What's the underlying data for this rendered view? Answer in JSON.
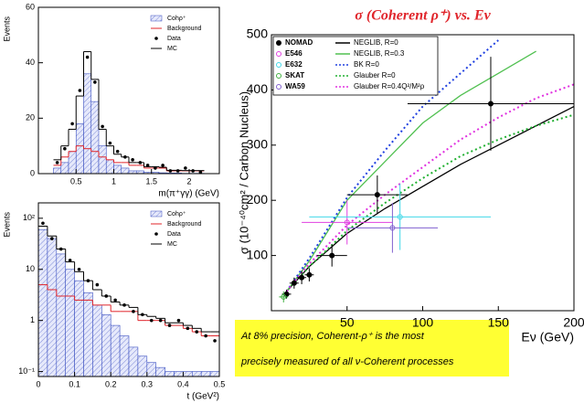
{
  "chart_data": [
    {
      "type": "histogram",
      "xlabel": "m(π⁺γγ) (GeV)",
      "ylabel": "Events",
      "bins": [
        0.2,
        0.3,
        0.4,
        0.5,
        0.6,
        0.7,
        0.8,
        0.9,
        1.0,
        1.1,
        1.2,
        1.3,
        1.4,
        1.5,
        1.6,
        1.7,
        1.8,
        1.9,
        2.0,
        2.1,
        2.2
      ],
      "xlim": [
        0,
        2.4
      ],
      "ylim": [
        0,
        60
      ],
      "xticks": [
        0.5,
        1,
        1.5,
        2
      ],
      "yticks": [
        0,
        20,
        40,
        60
      ],
      "log": false,
      "legend": "upper right",
      "series": [
        {
          "name": "Cohρ⁺",
          "style": "hatched",
          "color": "#3a4fc0",
          "values": [
            2,
            4,
            8,
            18,
            36,
            26,
            10,
            5,
            3,
            2,
            1,
            1,
            0.5,
            0.5,
            0.3,
            0.2,
            0.2,
            0.1,
            0.1,
            0.1
          ]
        },
        {
          "name": "Background",
          "style": "step",
          "color": "#e0242a",
          "values": [
            3,
            6,
            8,
            10,
            9,
            8,
            6,
            5,
            4,
            4,
            3,
            3,
            2,
            2,
            2,
            1,
            1,
            1,
            1,
            1
          ]
        },
        {
          "name": "Data",
          "style": "points",
          "color": "#000000",
          "values": [
            4,
            9,
            18,
            30,
            42,
            33,
            17,
            11,
            8,
            6,
            5,
            4,
            3,
            2,
            3,
            1,
            1,
            2,
            1,
            0.5
          ]
        },
        {
          "name": "MC",
          "style": "step",
          "color": "#000000",
          "values": [
            5,
            10,
            16,
            28,
            44,
            34,
            16,
            10,
            7,
            6,
            4,
            4,
            2.5,
            2.5,
            2.3,
            1.2,
            1.2,
            1.1,
            1.1,
            1.1
          ]
        }
      ]
    },
    {
      "type": "histogram",
      "xlabel": "t (GeV²)",
      "ylabel": "Events",
      "bins": [
        0,
        0.025,
        0.05,
        0.075,
        0.1,
        0.125,
        0.15,
        0.175,
        0.2,
        0.225,
        0.25,
        0.275,
        0.3,
        0.325,
        0.35,
        0.375,
        0.4,
        0.425,
        0.45,
        0.475,
        0.5
      ],
      "xlim": [
        0,
        0.5
      ],
      "ylim": [
        0.08,
        200
      ],
      "log": true,
      "legend": "upper right",
      "xticks": [
        0,
        0.1,
        0.2,
        0.3,
        0.4,
        0.5
      ],
      "yticks": [
        {
          "value": 0.1,
          "label": "10⁻¹"
        },
        1,
        10,
        {
          "value": 100,
          "label": "10²"
        }
      ],
      "series": [
        {
          "name": "Cohρ⁺",
          "style": "hatched",
          "color": "#3a4fc0",
          "values": [
            60,
            40,
            20,
            10,
            6,
            3.5,
            2,
            1.3,
            0.8,
            0.5,
            0.3,
            0.2,
            0.15,
            0.12,
            0.1,
            0.1,
            0.1,
            0.1,
            0.1,
            0.1
          ]
        },
        {
          "name": "Background",
          "style": "step",
          "color": "#e0242a",
          "values": [
            5,
            4,
            3,
            3,
            2.5,
            2.5,
            2,
            2,
            1.5,
            1.5,
            1.5,
            1,
            1,
            1,
            0.8,
            0.8,
            0.7,
            0.6,
            0.5,
            0.5
          ]
        },
        {
          "name": "Data",
          "style": "points",
          "color": "#000000",
          "values": [
            80,
            40,
            25,
            15,
            10,
            6,
            5,
            3,
            2.5,
            2,
            1.5,
            1.3,
            1,
            1,
            0.8,
            1,
            0.7,
            0.6,
            0.5,
            0.4
          ]
        },
        {
          "name": "MC",
          "style": "step",
          "color": "#000000",
          "values": [
            70,
            45,
            25,
            14,
            9,
            6,
            4,
            3,
            2.3,
            2,
            1.8,
            1.3,
            1.2,
            1.1,
            0.9,
            0.9,
            0.8,
            0.7,
            0.6,
            0.6
          ]
        }
      ]
    },
    {
      "type": "line",
      "title": "σ (Coherent ρ⁺) vs. Eν",
      "xlabel": "Eν (GeV)",
      "ylabel": "σ (10⁻⁴⁰cm² / Carbon Nucleus)",
      "xlim": [
        0,
        200
      ],
      "ylim": [
        0,
        500
      ],
      "xticks": [
        50,
        100,
        150,
        200
      ],
      "yticks": [
        100,
        200,
        300,
        400,
        500
      ],
      "legend": "upper left",
      "x": [
        10,
        25,
        50,
        75,
        100,
        125,
        150,
        175,
        200
      ],
      "points": [
        {
          "name": "NOMAD",
          "color": "#000000",
          "x": [
            10,
            15,
            20,
            25,
            40,
            70,
            145
          ],
          "values": [
            30,
            50,
            60,
            65,
            100,
            210,
            375
          ],
          "xerr": [
            3,
            3,
            3,
            3,
            10,
            20,
            55
          ],
          "yerr": [
            8,
            10,
            12,
            12,
            20,
            35,
            85
          ]
        },
        {
          "name": "E546",
          "color": "#e040e0",
          "x": [
            50
          ],
          "values": [
            160
          ],
          "xerr": [
            30
          ],
          "yerr": [
            40
          ]
        },
        {
          "name": "E632",
          "color": "#40d8e8",
          "x": [
            85
          ],
          "values": [
            170
          ],
          "xerr": [
            60
          ],
          "yerr": [
            60
          ]
        },
        {
          "name": "SKAT",
          "color": "#40b040",
          "x": [
            8
          ],
          "values": [
            25
          ],
          "xerr": [
            3
          ],
          "yerr": [
            10
          ]
        },
        {
          "name": "WA59",
          "color": "#8060d0",
          "x": [
            80
          ],
          "values": [
            150
          ],
          "xerr": [
            30
          ],
          "yerr": [
            45
          ]
        }
      ],
      "series": [
        {
          "name": "NEGLIB, R=0",
          "style": "solid",
          "color": "#000000",
          "values": [
            35,
            80,
            140,
            185,
            225,
            265,
            300,
            335,
            370
          ]
        },
        {
          "name": "NEGLIB, R=0.3",
          "style": "solid",
          "color": "#50c050",
          "values": [
            35,
            90,
            200,
            270,
            340,
            390,
            430,
            470,
            null
          ]
        },
        {
          "name": "BK R=0",
          "style": "dotted",
          "color": "#2040e0",
          "values": [
            35,
            95,
            205,
            290,
            370,
            430,
            490,
            null,
            null
          ]
        },
        {
          "name": "Glauber R=0",
          "style": "dotted",
          "color": "#20b030",
          "values": [
            35,
            80,
            145,
            195,
            240,
            280,
            310,
            335,
            355
          ]
        },
        {
          "name": "Glauber R=0.4Q²/M²ρ",
          "style": "dotted",
          "color": "#e030e0",
          "values": [
            35,
            85,
            155,
            210,
            260,
            310,
            350,
            385,
            410
          ]
        }
      ]
    }
  ],
  "note": {
    "lines": [
      "At 8% precision, Coherent-ρ⁺ is the most",
      "precisely measured of all ν-Coherent processes"
    ]
  }
}
